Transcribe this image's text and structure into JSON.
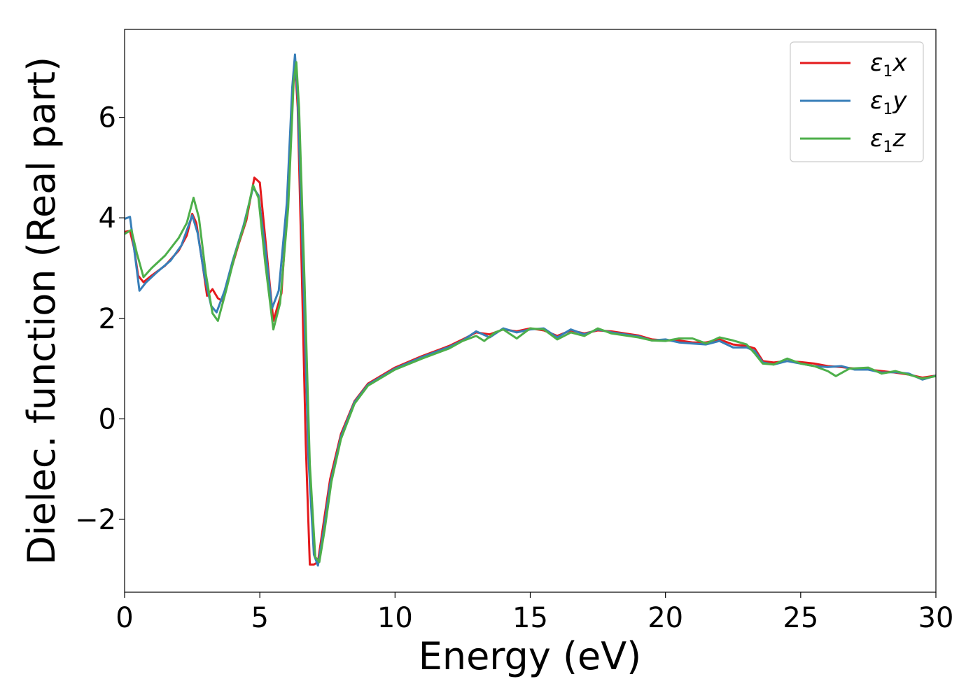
{
  "chart_data": {
    "type": "line",
    "xlabel": "Energy (eV)",
    "ylabel": "Dielec. function (Real part)",
    "xlim": [
      0,
      30
    ],
    "ylim": [
      -3.45,
      7.75
    ],
    "xticks": [
      0,
      5,
      10,
      15,
      20,
      25,
      30
    ],
    "yticks": [
      -2,
      0,
      2,
      4,
      6
    ],
    "xtick_labels": [
      "0",
      "5",
      "10",
      "15",
      "20",
      "25",
      "30"
    ],
    "ytick_labels": [
      "−2",
      "0",
      "2",
      "4",
      "6"
    ],
    "grid": false,
    "legend_position": "top-right",
    "series": [
      {
        "name": "ε1x",
        "legend_symbol": "ε",
        "legend_sub": "1",
        "legend_var": "x",
        "color": "#e41a1c",
        "points": [
          [
            0,
            3.72
          ],
          [
            0.2,
            3.74
          ],
          [
            0.35,
            3.4
          ],
          [
            0.5,
            2.85
          ],
          [
            0.7,
            2.72
          ],
          [
            1.0,
            2.85
          ],
          [
            1.5,
            3.05
          ],
          [
            2.0,
            3.35
          ],
          [
            2.3,
            3.65
          ],
          [
            2.5,
            4.08
          ],
          [
            2.65,
            3.9
          ],
          [
            2.85,
            3.2
          ],
          [
            3.05,
            2.45
          ],
          [
            3.25,
            2.58
          ],
          [
            3.45,
            2.4
          ],
          [
            3.6,
            2.35
          ],
          [
            3.9,
            2.9
          ],
          [
            4.2,
            3.45
          ],
          [
            4.5,
            3.95
          ],
          [
            4.8,
            4.8
          ],
          [
            5.0,
            4.7
          ],
          [
            5.2,
            3.6
          ],
          [
            5.5,
            1.95
          ],
          [
            5.8,
            2.5
          ],
          [
            6.0,
            4.1
          ],
          [
            6.2,
            6.4
          ],
          [
            6.3,
            7.1
          ],
          [
            6.4,
            6.2
          ],
          [
            6.55,
            3.0
          ],
          [
            6.7,
            -0.5
          ],
          [
            6.85,
            -2.9
          ],
          [
            7.0,
            -2.9
          ],
          [
            7.15,
            -2.85
          ],
          [
            7.35,
            -2.1
          ],
          [
            7.6,
            -1.2
          ],
          [
            8.0,
            -0.3
          ],
          [
            8.5,
            0.35
          ],
          [
            9.0,
            0.7
          ],
          [
            10.0,
            1.02
          ],
          [
            11.0,
            1.25
          ],
          [
            12.0,
            1.45
          ],
          [
            12.5,
            1.58
          ],
          [
            13.0,
            1.72
          ],
          [
            13.5,
            1.68
          ],
          [
            14.0,
            1.78
          ],
          [
            14.5,
            1.74
          ],
          [
            15.0,
            1.8
          ],
          [
            15.5,
            1.76
          ],
          [
            16.0,
            1.65
          ],
          [
            16.5,
            1.76
          ],
          [
            17.0,
            1.7
          ],
          [
            17.5,
            1.76
          ],
          [
            18.0,
            1.74
          ],
          [
            18.5,
            1.7
          ],
          [
            19.0,
            1.66
          ],
          [
            19.5,
            1.58
          ],
          [
            20.0,
            1.56
          ],
          [
            20.5,
            1.56
          ],
          [
            21.0,
            1.52
          ],
          [
            21.5,
            1.52
          ],
          [
            22.0,
            1.58
          ],
          [
            22.5,
            1.48
          ],
          [
            23.0,
            1.45
          ],
          [
            23.3,
            1.4
          ],
          [
            23.6,
            1.15
          ],
          [
            24.0,
            1.12
          ],
          [
            24.5,
            1.15
          ],
          [
            25.0,
            1.13
          ],
          [
            25.5,
            1.1
          ],
          [
            26.0,
            1.05
          ],
          [
            26.5,
            1.03
          ],
          [
            27.0,
            1.0
          ],
          [
            27.5,
            0.98
          ],
          [
            28.0,
            0.95
          ],
          [
            28.5,
            0.92
          ],
          [
            29.0,
            0.88
          ],
          [
            29.5,
            0.82
          ],
          [
            30.0,
            0.86
          ]
        ]
      },
      {
        "name": "ε1y",
        "legend_symbol": "ε",
        "legend_sub": "1",
        "legend_var": "y",
        "color": "#377eb8",
        "points": [
          [
            0,
            3.98
          ],
          [
            0.2,
            4.02
          ],
          [
            0.35,
            3.4
          ],
          [
            0.55,
            2.55
          ],
          [
            0.8,
            2.72
          ],
          [
            1.2,
            2.92
          ],
          [
            1.7,
            3.15
          ],
          [
            2.1,
            3.45
          ],
          [
            2.5,
            4.05
          ],
          [
            2.7,
            3.7
          ],
          [
            2.95,
            2.85
          ],
          [
            3.2,
            2.25
          ],
          [
            3.4,
            2.12
          ],
          [
            3.7,
            2.55
          ],
          [
            4.0,
            3.15
          ],
          [
            4.4,
            3.85
          ],
          [
            4.75,
            4.6
          ],
          [
            4.95,
            4.45
          ],
          [
            5.2,
            3.4
          ],
          [
            5.45,
            2.2
          ],
          [
            5.7,
            2.55
          ],
          [
            6.0,
            4.3
          ],
          [
            6.2,
            6.6
          ],
          [
            6.3,
            7.25
          ],
          [
            6.4,
            6.4
          ],
          [
            6.6,
            3.0
          ],
          [
            6.8,
            -0.8
          ],
          [
            7.0,
            -2.7
          ],
          [
            7.15,
            -2.92
          ],
          [
            7.35,
            -2.25
          ],
          [
            7.6,
            -1.3
          ],
          [
            8.0,
            -0.35
          ],
          [
            8.5,
            0.33
          ],
          [
            9.0,
            0.68
          ],
          [
            10.0,
            1.0
          ],
          [
            11.0,
            1.23
          ],
          [
            12.0,
            1.43
          ],
          [
            12.5,
            1.56
          ],
          [
            13.0,
            1.74
          ],
          [
            13.5,
            1.62
          ],
          [
            14.0,
            1.8
          ],
          [
            14.5,
            1.72
          ],
          [
            15.0,
            1.78
          ],
          [
            15.5,
            1.8
          ],
          [
            16.0,
            1.62
          ],
          [
            16.5,
            1.78
          ],
          [
            17.0,
            1.68
          ],
          [
            17.5,
            1.78
          ],
          [
            18.0,
            1.72
          ],
          [
            18.5,
            1.68
          ],
          [
            19.0,
            1.64
          ],
          [
            19.5,
            1.56
          ],
          [
            20.0,
            1.58
          ],
          [
            20.5,
            1.52
          ],
          [
            21.0,
            1.5
          ],
          [
            21.5,
            1.48
          ],
          [
            22.0,
            1.55
          ],
          [
            22.5,
            1.42
          ],
          [
            23.0,
            1.42
          ],
          [
            23.3,
            1.35
          ],
          [
            23.6,
            1.12
          ],
          [
            24.0,
            1.08
          ],
          [
            24.5,
            1.15
          ],
          [
            25.0,
            1.1
          ],
          [
            25.5,
            1.05
          ],
          [
            26.0,
            1.03
          ],
          [
            26.5,
            1.05
          ],
          [
            27.0,
            0.98
          ],
          [
            27.5,
            0.98
          ],
          [
            28.0,
            0.92
          ],
          [
            28.5,
            0.93
          ],
          [
            29.0,
            0.9
          ],
          [
            29.5,
            0.78
          ],
          [
            30.0,
            0.86
          ]
        ]
      },
      {
        "name": "ε1z",
        "legend_symbol": "ε",
        "legend_sub": "1",
        "legend_var": "z",
        "color": "#4daf4a",
        "points": [
          [
            0,
            3.68
          ],
          [
            0.25,
            3.76
          ],
          [
            0.45,
            3.3
          ],
          [
            0.7,
            2.82
          ],
          [
            1.0,
            3.0
          ],
          [
            1.5,
            3.25
          ],
          [
            2.0,
            3.6
          ],
          [
            2.3,
            3.9
          ],
          [
            2.55,
            4.4
          ],
          [
            2.75,
            4.0
          ],
          [
            3.0,
            2.9
          ],
          [
            3.25,
            2.1
          ],
          [
            3.45,
            1.95
          ],
          [
            3.75,
            2.55
          ],
          [
            4.1,
            3.3
          ],
          [
            4.45,
            3.9
          ],
          [
            4.75,
            4.65
          ],
          [
            4.95,
            4.4
          ],
          [
            5.2,
            3.1
          ],
          [
            5.5,
            1.78
          ],
          [
            5.75,
            2.3
          ],
          [
            6.05,
            4.2
          ],
          [
            6.25,
            6.7
          ],
          [
            6.35,
            7.1
          ],
          [
            6.45,
            6.2
          ],
          [
            6.65,
            2.8
          ],
          [
            6.85,
            -0.9
          ],
          [
            7.05,
            -2.75
          ],
          [
            7.2,
            -2.85
          ],
          [
            7.4,
            -2.2
          ],
          [
            7.65,
            -1.25
          ],
          [
            8.0,
            -0.4
          ],
          [
            8.5,
            0.3
          ],
          [
            9.0,
            0.66
          ],
          [
            10.0,
            0.98
          ],
          [
            11.0,
            1.2
          ],
          [
            12.0,
            1.4
          ],
          [
            12.5,
            1.55
          ],
          [
            13.0,
            1.65
          ],
          [
            13.3,
            1.55
          ],
          [
            13.7,
            1.72
          ],
          [
            14.0,
            1.78
          ],
          [
            14.5,
            1.6
          ],
          [
            15.0,
            1.8
          ],
          [
            15.5,
            1.78
          ],
          [
            16.0,
            1.58
          ],
          [
            16.5,
            1.72
          ],
          [
            17.0,
            1.65
          ],
          [
            17.5,
            1.8
          ],
          [
            18.0,
            1.7
          ],
          [
            18.5,
            1.66
          ],
          [
            19.0,
            1.62
          ],
          [
            19.5,
            1.56
          ],
          [
            20.0,
            1.55
          ],
          [
            20.5,
            1.6
          ],
          [
            21.0,
            1.6
          ],
          [
            21.5,
            1.5
          ],
          [
            22.0,
            1.62
          ],
          [
            22.5,
            1.56
          ],
          [
            23.0,
            1.48
          ],
          [
            23.3,
            1.3
          ],
          [
            23.6,
            1.1
          ],
          [
            24.0,
            1.08
          ],
          [
            24.5,
            1.2
          ],
          [
            25.0,
            1.1
          ],
          [
            25.5,
            1.05
          ],
          [
            26.0,
            0.95
          ],
          [
            26.3,
            0.85
          ],
          [
            26.8,
            1.0
          ],
          [
            27.5,
            1.02
          ],
          [
            28.0,
            0.9
          ],
          [
            28.5,
            0.95
          ],
          [
            29.0,
            0.88
          ],
          [
            29.5,
            0.8
          ],
          [
            30.0,
            0.85
          ]
        ]
      }
    ]
  }
}
